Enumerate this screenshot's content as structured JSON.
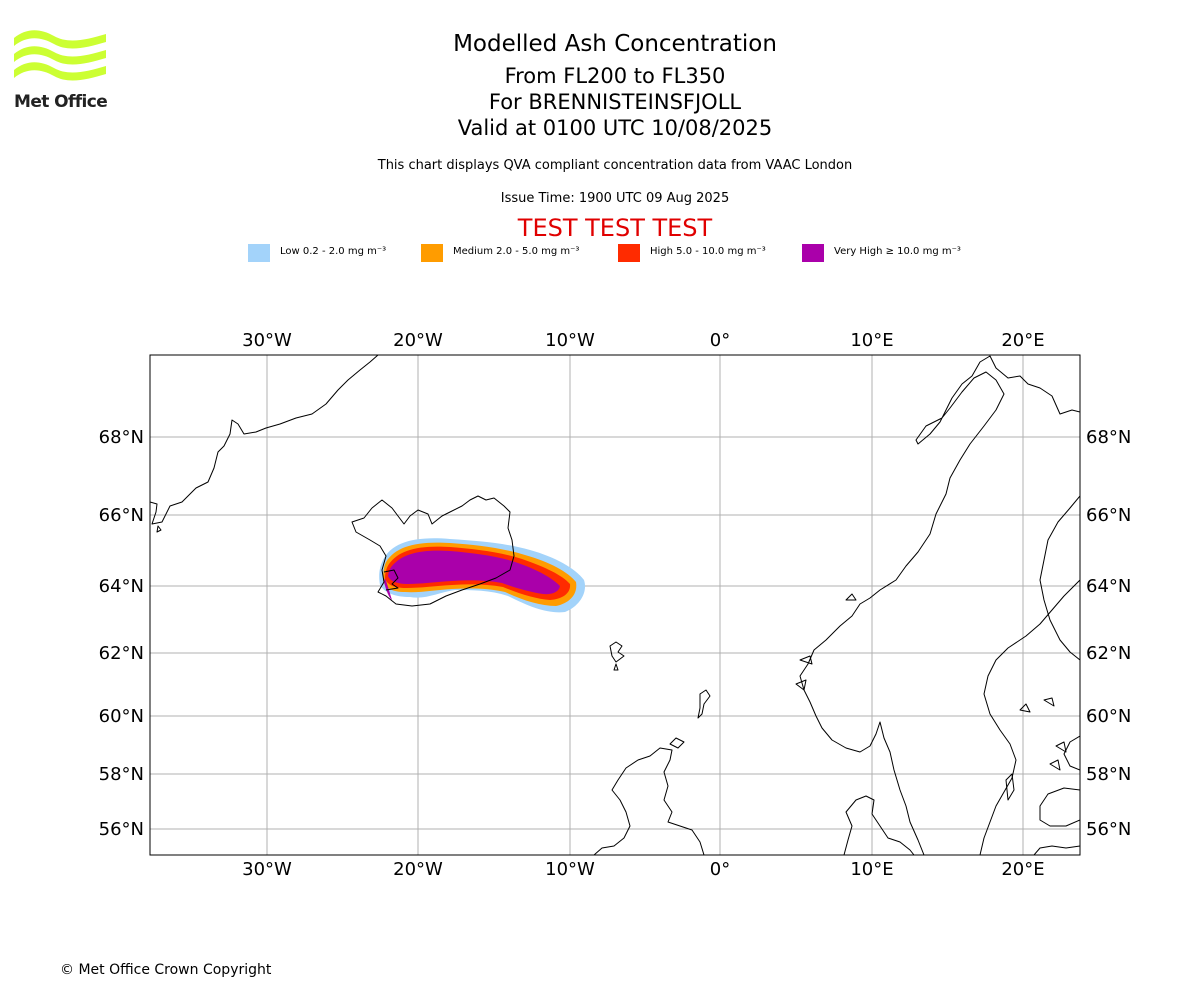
{
  "logo": {
    "text": "Met Office",
    "color": "#ccff33"
  },
  "title": {
    "main": "Modelled Ash Concentration",
    "levels": "From FL200 to FL350",
    "volcano": "For BRENNISTEINSFJOLL",
    "valid": "Valid at 0100 UTC 10/08/2025",
    "description": "This chart displays QVA compliant concentration data from VAAC London",
    "issue": "Issue Time: 1900 UTC 09 Aug 2025",
    "test_banner": "TEST TEST TEST"
  },
  "legend": [
    {
      "label": "Low 0.2 - 2.0 mg m⁻³",
      "color": "#a3d3fa"
    },
    {
      "label": "Medium 2.0 - 5.0 mg m⁻³",
      "color": "#ff9c00"
    },
    {
      "label": "High 5.0 - 10.0 mg m⁻³",
      "color": "#ff2b00"
    },
    {
      "label": "Very High ≥ 10.0 mg m⁻³",
      "color": "#aa00aa"
    }
  ],
  "map": {
    "lon_ticks": [
      "30°W",
      "20°W",
      "10°W",
      "0°",
      "10°E",
      "20°E"
    ],
    "lat_ticks": [
      "68°N",
      "66°N",
      "64°N",
      "62°N",
      "60°N",
      "58°N",
      "56°N"
    ],
    "grid": true,
    "projection": "polar stereographic"
  },
  "copyright": "© Met Office Crown Copyright"
}
